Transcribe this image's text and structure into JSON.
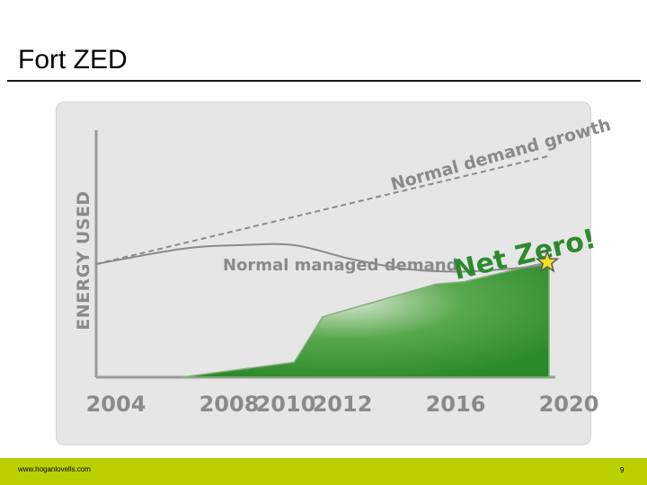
{
  "slide": {
    "title": "Fort ZED",
    "footer_url": "www.hoganlovells.com",
    "page_number": "9"
  },
  "colors": {
    "footer_bar": "#bccf00",
    "area_fill": "#2f8f2f",
    "area_highlight": "#d6e7cf",
    "net_zero_text": "#2f8a2f",
    "star": "#f4e01a",
    "axis_text": "#8a8a8a",
    "frame": "#e6e6e6"
  },
  "chart_data": {
    "type": "area",
    "ylabel": "ENERGY USED",
    "tick_labels": [
      "2004",
      "2008",
      "2010",
      "2012",
      "2016",
      "2020"
    ],
    "xlim": [
      2004,
      2020
    ],
    "ylim": [
      0,
      100
    ],
    "grid": false,
    "y_ticks_shown": false,
    "series": [
      {
        "name": "Normal demand growth",
        "style": "dashed",
        "x": [
          2004,
          2020
        ],
        "y": [
          45,
          88
        ]
      },
      {
        "name": "Normal managed demand",
        "style": "solid",
        "x": [
          2004,
          2007,
          2009,
          2011,
          2013,
          2015,
          2017,
          2019,
          2020
        ],
        "y": [
          45,
          51,
          52.5,
          52.5,
          47,
          43,
          42,
          43.5,
          45
        ]
      },
      {
        "name": "",
        "style": "filled-area",
        "x": [
          2007,
          2011,
          2012,
          2016,
          2017,
          2020
        ],
        "y": [
          0,
          6,
          24,
          37,
          38,
          46
        ]
      }
    ],
    "annotations": [
      {
        "text": "Net Zero!",
        "x": 2018.3,
        "y": 56
      },
      {
        "text": "★",
        "x": 2020,
        "y": 45
      }
    ]
  }
}
